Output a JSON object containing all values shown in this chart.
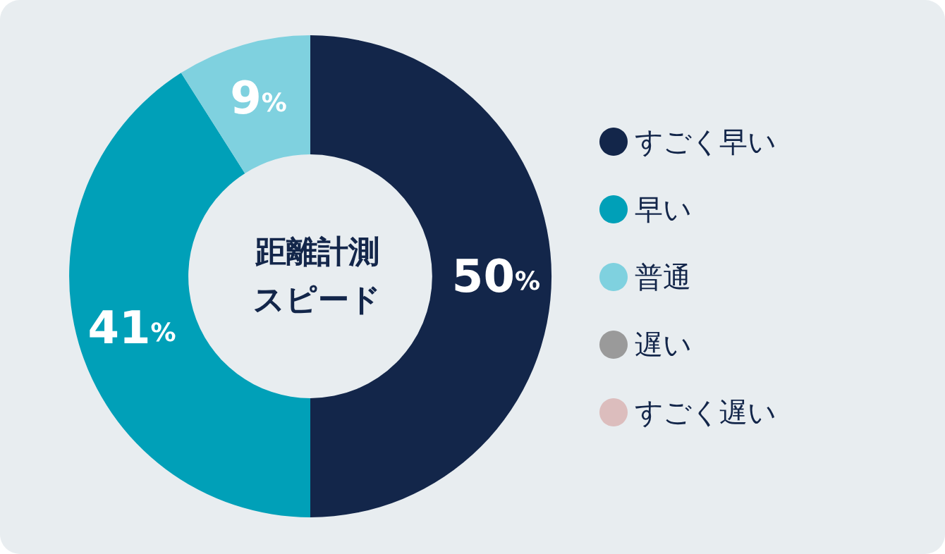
{
  "chart_data": {
    "type": "donut",
    "title": "距離計測スピード",
    "categories": [
      "すごく早い",
      "早い",
      "普通",
      "遅い",
      "すごく遅い"
    ],
    "values": [
      50,
      41,
      9,
      0,
      0
    ],
    "colors": [
      "#13264a",
      "#00a0b8",
      "#7fd1df",
      "#9a9a9a",
      "#dcbdbd"
    ],
    "value_labels": [
      "50%",
      "41%",
      "9%",
      null,
      null
    ],
    "legend": "right"
  }
}
